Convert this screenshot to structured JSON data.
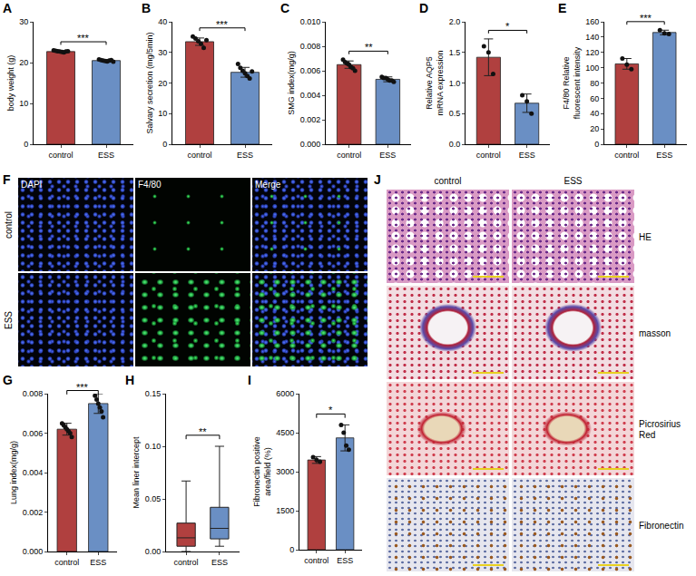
{
  "chart_data": [
    {
      "panel": "A",
      "type": "bar",
      "ylabel": "body weight (g)",
      "categories": [
        "control",
        "ESS"
      ],
      "values": [
        22.7,
        20.5
      ],
      "errors": [
        0.2,
        0.25
      ],
      "points": [
        [
          23.0,
          22.9,
          22.8,
          22.7,
          22.6,
          22.5,
          22.7,
          22.8
        ],
        [
          20.8,
          20.6,
          20.5,
          20.4,
          20.3,
          20.5,
          20.6,
          20.2
        ]
      ],
      "colors": [
        "#b0403f",
        "#6a8fc4"
      ],
      "ylim": [
        0,
        30
      ],
      "yticks": [
        0,
        10,
        20,
        30
      ],
      "significance": "***",
      "grid": false
    },
    {
      "panel": "B",
      "type": "bar",
      "ylabel": "Salvary secretion (mg/5min)",
      "categories": [
        "control",
        "ESS"
      ],
      "values": [
        33.5,
        23.5
      ],
      "errors": [
        1.2,
        1.6
      ],
      "points": [
        [
          35.2,
          34.5,
          33.6,
          32.8,
          31.5,
          34.0
        ],
        [
          26.2,
          25.0,
          24.0,
          23.2,
          22.3,
          21.5,
          23.8
        ]
      ],
      "colors": [
        "#b0403f",
        "#6a8fc4"
      ],
      "ylim": [
        0,
        40
      ],
      "yticks": [
        0,
        10,
        20,
        30,
        40
      ],
      "significance": "***",
      "grid": false
    },
    {
      "panel": "C",
      "type": "bar",
      "ylabel": "SMG index(mg/g)",
      "categories": [
        "control",
        "ESS"
      ],
      "values": [
        0.0065,
        0.0053
      ],
      "errors": [
        0.0003,
        0.0002
      ],
      "points": [
        [
          0.0069,
          0.0067,
          0.0066,
          0.0065,
          0.0063,
          0.0062,
          0.006
        ],
        [
          0.0055,
          0.0054,
          0.0054,
          0.0053,
          0.0052,
          0.0052,
          0.0051
        ]
      ],
      "colors": [
        "#b0403f",
        "#6a8fc4"
      ],
      "ylim": [
        0,
        0.01
      ],
      "yticks": [
        {
          "value": 0,
          "label": "0.000"
        },
        {
          "value": 0.002,
          "label": "0.002"
        },
        {
          "value": 0.004,
          "label": "0.004"
        },
        {
          "value": 0.006,
          "label": "0.006"
        },
        {
          "value": 0.008,
          "label": "0.008"
        },
        {
          "value": 0.01,
          "label": "0.010"
        }
      ],
      "significance": "**",
      "grid": false
    },
    {
      "panel": "D",
      "type": "bar",
      "ylabel": "Relative AQP5 mRNA expression",
      "categories": [
        "control",
        "ESS"
      ],
      "values": [
        1.42,
        0.67
      ],
      "errors": [
        0.3,
        0.15
      ],
      "points": [
        [
          1.6,
          1.5,
          1.15
        ],
        [
          0.8,
          0.7,
          0.5
        ]
      ],
      "colors": [
        "#b0403f",
        "#6a8fc4"
      ],
      "ylim": [
        0,
        2.0
      ],
      "yticks": [
        {
          "value": 0,
          "label": "0.0"
        },
        {
          "value": 0.5,
          "label": "0.5"
        },
        {
          "value": 1,
          "label": "1.0"
        },
        {
          "value": 1.5,
          "label": "1.5"
        },
        {
          "value": 2,
          "label": "2.0"
        }
      ],
      "significance": "*",
      "grid": false
    },
    {
      "panel": "E",
      "type": "bar",
      "ylabel": "F4/80 Relative fluorescent intensity",
      "categories": [
        "control",
        "ESS"
      ],
      "values": [
        105,
        146
      ],
      "errors": [
        7,
        3
      ],
      "points": [
        [
          112,
          104,
          98
        ],
        [
          149,
          145,
          144
        ]
      ],
      "colors": [
        "#b0403f",
        "#6a8fc4"
      ],
      "ylim": [
        0,
        160
      ],
      "yticks": [
        0,
        20,
        40,
        60,
        80,
        100,
        120,
        140,
        160
      ],
      "significance": "***",
      "grid": false
    },
    {
      "panel": "G",
      "type": "bar",
      "ylabel": "Lung index(mg/g)",
      "categories": [
        "control",
        "ESS"
      ],
      "values": [
        0.0062,
        0.0075
      ],
      "errors": [
        0.0003,
        0.0005
      ],
      "points": [
        [
          0.0065,
          0.0064,
          0.0063,
          0.0062,
          0.0061,
          0.006,
          0.0058
        ],
        [
          0.0082,
          0.0079,
          0.0077,
          0.0075,
          0.0073,
          0.0071,
          0.0068
        ]
      ],
      "colors": [
        "#b0403f",
        "#6a8fc4"
      ],
      "ylim": [
        0,
        0.008
      ],
      "yticks": [
        {
          "value": 0,
          "label": "0.000"
        },
        {
          "value": 0.002,
          "label": "0.002"
        },
        {
          "value": 0.004,
          "label": "0.004"
        },
        {
          "value": 0.006,
          "label": "0.006"
        },
        {
          "value": 0.008,
          "label": "0.008"
        }
      ],
      "significance": "***",
      "grid": false
    },
    {
      "panel": "H",
      "type": "box",
      "ylabel": "Mean liner intercept",
      "categories": [
        "control",
        "ESS"
      ],
      "stats": {
        "min": [
          0.0,
          0.005
        ],
        "q1": [
          0.005,
          0.012
        ],
        "median": [
          0.013,
          0.022
        ],
        "q3": [
          0.027,
          0.042
        ],
        "max": [
          0.067,
          0.1
        ]
      },
      "colors": [
        "#b0403f",
        "#6a8fc4"
      ],
      "ylim": [
        0,
        0.15
      ],
      "yticks": [
        {
          "value": 0,
          "label": "0.00"
        },
        {
          "value": 0.05,
          "label": "0.05"
        },
        {
          "value": 0.1,
          "label": "0.10"
        },
        {
          "value": 0.15,
          "label": "0.15"
        }
      ],
      "significance": "**",
      "grid": false
    },
    {
      "panel": "I",
      "type": "bar",
      "ylabel": "Fibronectin positive area/field (%)",
      "categories": [
        "control",
        "ESS"
      ],
      "values": [
        3450,
        4300
      ],
      "errors": [
        130,
        500
      ],
      "points": [
        [
          3560,
          3450,
          3380
        ],
        [
          4800,
          4500,
          4000,
          3850
        ]
      ],
      "colors": [
        "#b0403f",
        "#6a8fc4"
      ],
      "ylim": [
        0,
        6000
      ],
      "yticks": [
        0,
        1500,
        3000,
        4500,
        6000
      ],
      "significance": "*",
      "grid": false
    }
  ],
  "image_panels": [
    {
      "panel": "F",
      "columns": [
        "DAPI",
        "F4/80",
        "Merge"
      ],
      "rows": [
        "control",
        "ESS"
      ]
    },
    {
      "panel": "J",
      "columns": [
        "control",
        "ESS"
      ],
      "rows": [
        "HE",
        "masson",
        "Picrosirius Red",
        "Fibronectin"
      ]
    }
  ]
}
